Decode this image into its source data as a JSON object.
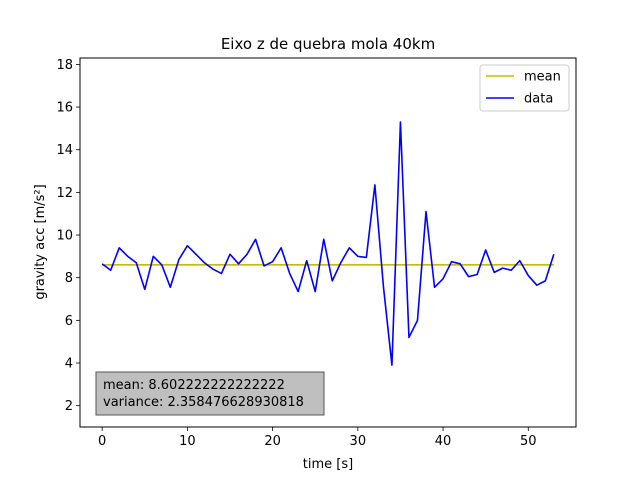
{
  "chart_data": {
    "type": "line",
    "title": "Eixo z de quebra mola 40km",
    "xlabel": "time [s]",
    "ylabel": "gravity acc [m/s²]",
    "xlim": [
      -2.6,
      55.6
    ],
    "ylim": [
      1.0,
      18.3
    ],
    "xticks": [
      0,
      10,
      20,
      30,
      40,
      50
    ],
    "yticks": [
      2,
      4,
      6,
      8,
      10,
      12,
      14,
      16,
      18
    ],
    "grid": false,
    "legend_position": "top-right",
    "series": [
      {
        "name": "mean",
        "color": "#bfbf00",
        "x": [
          0,
          53
        ],
        "y": [
          8.602222222222222,
          8.602222222222222
        ]
      },
      {
        "name": "data",
        "color": "#0000ff",
        "x": [
          0,
          1,
          2,
          3,
          4,
          5,
          6,
          7,
          8,
          9,
          10,
          11,
          12,
          13,
          14,
          15,
          16,
          17,
          18,
          19,
          20,
          21,
          22,
          23,
          24,
          25,
          26,
          27,
          28,
          29,
          30,
          31,
          32,
          33,
          34,
          35,
          36,
          37,
          38,
          39,
          40,
          41,
          42,
          43,
          44,
          45,
          46,
          47,
          48,
          49,
          50,
          51,
          52,
          53
        ],
        "y": [
          8.65,
          8.35,
          9.4,
          9.0,
          8.7,
          7.45,
          9.0,
          8.6,
          7.55,
          8.85,
          9.5,
          9.1,
          8.7,
          8.4,
          8.2,
          9.1,
          8.65,
          9.1,
          9.8,
          8.55,
          8.75,
          9.4,
          8.2,
          7.35,
          8.8,
          7.35,
          9.8,
          7.85,
          8.7,
          9.4,
          9.0,
          8.95,
          12.35,
          7.6,
          3.9,
          15.3,
          5.2,
          6.0,
          11.1,
          7.55,
          7.95,
          8.75,
          8.65,
          8.05,
          8.15,
          9.3,
          8.25,
          8.45,
          8.35,
          8.8,
          8.1,
          7.65,
          7.85,
          9.1
        ]
      }
    ],
    "annotation": {
      "lines": [
        "mean: 8.602222222222222",
        "variance: 2.358476628930818"
      ]
    }
  }
}
